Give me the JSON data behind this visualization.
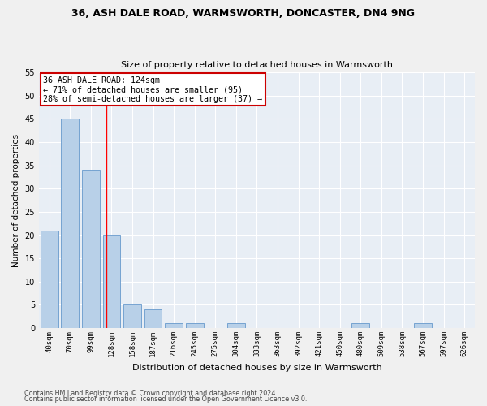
{
  "title1": "36, ASH DALE ROAD, WARMSWORTH, DONCASTER, DN4 9NG",
  "title2": "Size of property relative to detached houses in Warmsworth",
  "xlabel": "Distribution of detached houses by size in Warmsworth",
  "ylabel": "Number of detached properties",
  "bar_labels": [
    "40sqm",
    "70sqm",
    "99sqm",
    "128sqm",
    "158sqm",
    "187sqm",
    "216sqm",
    "245sqm",
    "275sqm",
    "304sqm",
    "333sqm",
    "363sqm",
    "392sqm",
    "421sqm",
    "450sqm",
    "480sqm",
    "509sqm",
    "538sqm",
    "567sqm",
    "597sqm",
    "626sqm"
  ],
  "bar_values": [
    21,
    45,
    34,
    20,
    5,
    4,
    1,
    1,
    0,
    1,
    0,
    0,
    0,
    0,
    0,
    1,
    0,
    0,
    1,
    0,
    0
  ],
  "bar_color": "#b8d0e8",
  "bar_edgecolor": "#6699cc",
  "bg_color": "#e8eef5",
  "grid_color": "#ffffff",
  "red_line_x": 2.75,
  "annotation_text": "36 ASH DALE ROAD: 124sqm\n← 71% of detached houses are smaller (95)\n28% of semi-detached houses are larger (37) →",
  "annotation_box_color": "#ffffff",
  "annotation_box_edgecolor": "#cc0000",
  "ylim": [
    0,
    55
  ],
  "yticks": [
    0,
    5,
    10,
    15,
    20,
    25,
    30,
    35,
    40,
    45,
    50,
    55
  ],
  "footnote1": "Contains HM Land Registry data © Crown copyright and database right 2024.",
  "footnote2": "Contains public sector information licensed under the Open Government Licence v3.0."
}
